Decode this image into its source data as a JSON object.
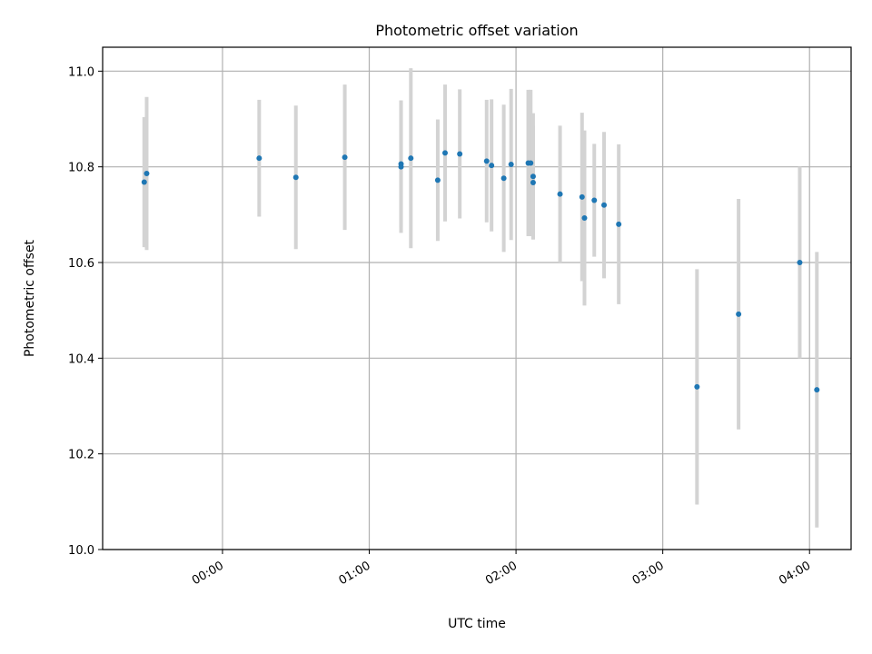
{
  "chart_data": {
    "type": "scatter",
    "title": "Photometric offset variation",
    "xlabel": "UTC time",
    "ylabel": "Photometric offset",
    "x_tick_labels": [
      "00:00",
      "01:00",
      "02:00",
      "03:00",
      "04:00"
    ],
    "x_tick_values": [
      "00:00",
      "01:00",
      "02:00",
      "03:00",
      "04:00"
    ],
    "y_tick_labels": [
      "10.0",
      "10.2",
      "10.4",
      "10.6",
      "10.8",
      "11.0"
    ],
    "y_tick_values": [
      10.0,
      10.2,
      10.4,
      10.6,
      10.8,
      11.0
    ],
    "xlim": [
      "23:11",
      "04:17"
    ],
    "ylim": [
      10.0,
      11.05
    ],
    "grid": true,
    "point_color": "#1f77b4",
    "errorbar_color": "#d3d3d3",
    "points": [
      {
        "x": "23:28",
        "y": 10.768,
        "err": 0.136
      },
      {
        "x": "23:29",
        "y": 10.786,
        "err": 0.16
      },
      {
        "x": "00:15",
        "y": 10.818,
        "err": 0.122
      },
      {
        "x": "00:30",
        "y": 10.778,
        "err": 0.15
      },
      {
        "x": "00:50",
        "y": 10.82,
        "err": 0.152
      },
      {
        "x": "01:13",
        "y": 10.806,
        "err": 0.133
      },
      {
        "x": "01:13",
        "y": 10.8,
        "err": 0.138
      },
      {
        "x": "01:17",
        "y": 10.818,
        "err": 0.188
      },
      {
        "x": "01:28",
        "y": 10.772,
        "err": 0.127
      },
      {
        "x": "01:31",
        "y": 10.829,
        "err": 0.143
      },
      {
        "x": "01:37",
        "y": 10.827,
        "err": 0.135
      },
      {
        "x": "01:48",
        "y": 10.812,
        "err": 0.128
      },
      {
        "x": "01:50",
        "y": 10.803,
        "err": 0.138
      },
      {
        "x": "01:55",
        "y": 10.776,
        "err": 0.154
      },
      {
        "x": "01:58",
        "y": 10.805,
        "err": 0.158
      },
      {
        "x": "02:05",
        "y": 10.808,
        "err": 0.153
      },
      {
        "x": "02:06",
        "y": 10.808,
        "err": 0.153
      },
      {
        "x": "02:07",
        "y": 10.78,
        "err": 0.132
      },
      {
        "x": "02:07",
        "y": 10.767,
        "err": 0.118
      },
      {
        "x": "02:18",
        "y": 10.743,
        "err": 0.143
      },
      {
        "x": "02:27",
        "y": 10.737,
        "err": 0.176
      },
      {
        "x": "02:28",
        "y": 10.693,
        "err": 0.183
      },
      {
        "x": "02:32",
        "y": 10.73,
        "err": 0.118
      },
      {
        "x": "02:36",
        "y": 10.72,
        "err": 0.153
      },
      {
        "x": "02:42",
        "y": 10.68,
        "err": 0.167
      },
      {
        "x": "03:14",
        "y": 10.34,
        "err": 0.246
      },
      {
        "x": "03:31",
        "y": 10.492,
        "err": 0.241
      },
      {
        "x": "03:56",
        "y": 10.6,
        "err": 0.2
      },
      {
        "x": "04:03",
        "y": 10.334,
        "err": 0.288
      }
    ]
  }
}
